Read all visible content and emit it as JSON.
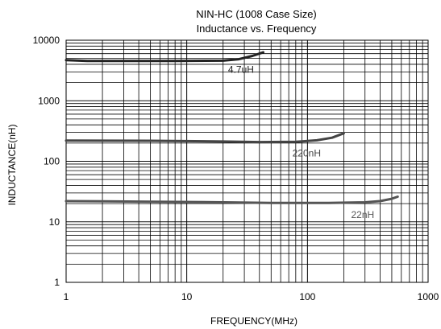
{
  "chart_data": {
    "type": "line",
    "title": "NIN-HC (1008 Case Size)",
    "subtitle": "Inductance vs. Frequency",
    "xlabel": "FREQUENCY(MHz)",
    "ylabel": "INDUCTANCE(nH)",
    "x_scale": "log",
    "y_scale": "log",
    "xlim": [
      1,
      1000
    ],
    "ylim": [
      1,
      10000
    ],
    "grid": true,
    "x_ticks": [
      {
        "value": 1,
        "label": "1"
      },
      {
        "value": 10,
        "label": "10"
      },
      {
        "value": 100,
        "label": "100"
      },
      {
        "value": 1000,
        "label": "1000"
      }
    ],
    "y_ticks": [
      {
        "value": 1,
        "label": "1"
      },
      {
        "value": 10,
        "label": "10"
      },
      {
        "value": 100,
        "label": "100"
      },
      {
        "value": 1000,
        "label": "1000"
      },
      {
        "value": 10000,
        "label": "10000"
      }
    ],
    "series": [
      {
        "name": "4.7uH",
        "color": "#222222",
        "label_at": {
          "x": 22,
          "y": 2900
        },
        "points": [
          [
            1,
            4700
          ],
          [
            1.5,
            4550
          ],
          [
            3,
            4550
          ],
          [
            8,
            4550
          ],
          [
            20,
            4600
          ],
          [
            27,
            4850
          ],
          [
            35,
            5500
          ],
          [
            43,
            6300
          ]
        ]
      },
      {
        "name": "220nH",
        "color": "#444444",
        "label_at": {
          "x": 75,
          "y": 120
        },
        "points": [
          [
            1,
            220
          ],
          [
            5,
            218
          ],
          [
            20,
            212
          ],
          [
            40,
            208
          ],
          [
            80,
            210
          ],
          [
            120,
            222
          ],
          [
            160,
            245
          ],
          [
            200,
            290
          ]
        ]
      },
      {
        "name": "22nH",
        "color": "#555555",
        "label_at": {
          "x": 230,
          "y": 11.5
        },
        "points": [
          [
            1,
            22
          ],
          [
            5,
            21.5
          ],
          [
            20,
            21
          ],
          [
            50,
            20.5
          ],
          [
            150,
            20.5
          ],
          [
            300,
            21
          ],
          [
            400,
            22
          ],
          [
            500,
            24
          ],
          [
            560,
            26
          ]
        ]
      }
    ]
  }
}
